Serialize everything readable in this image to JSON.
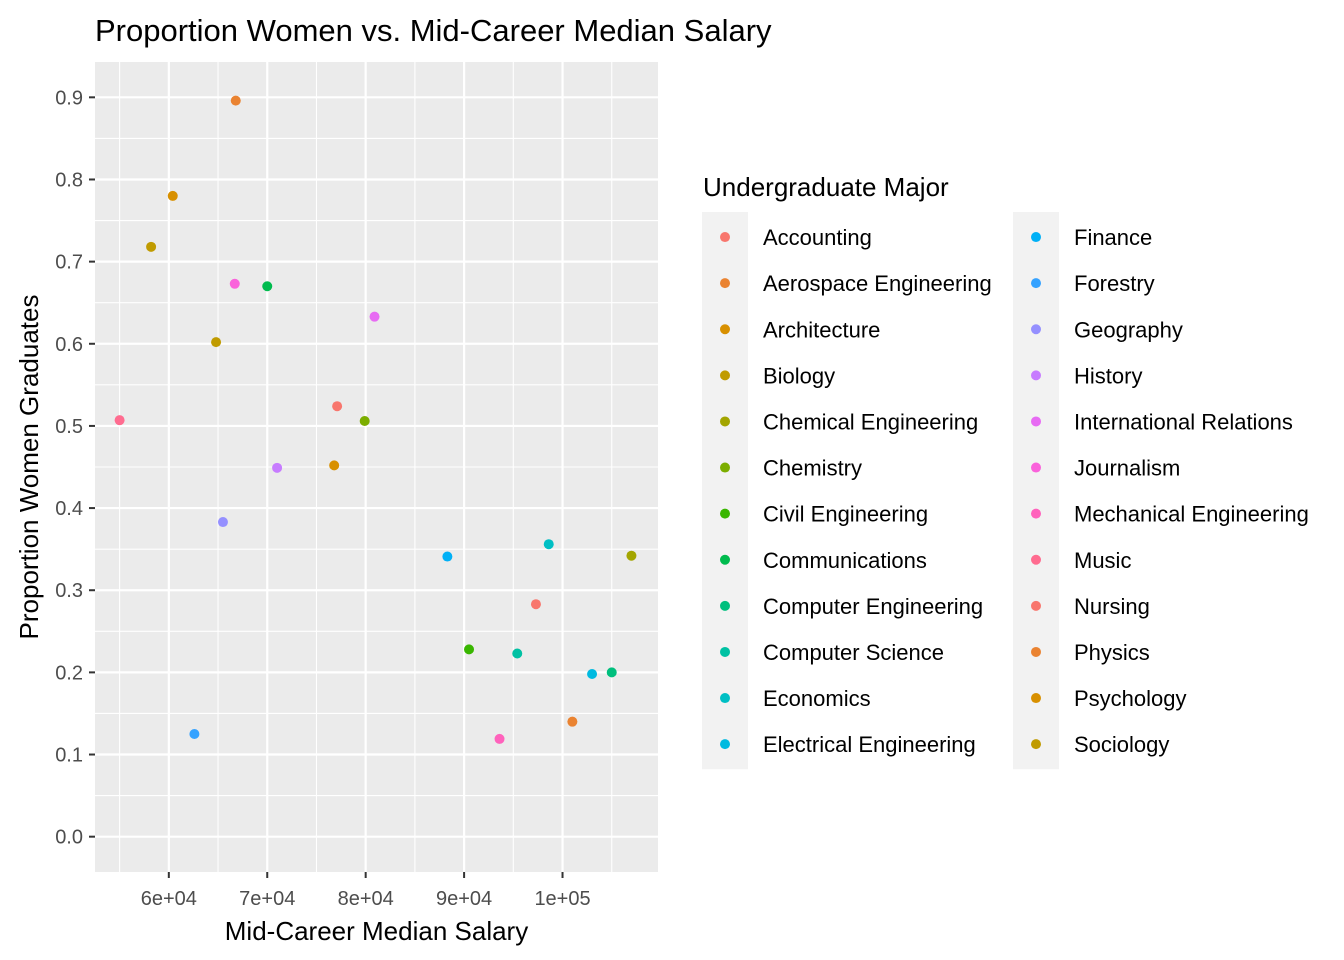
{
  "chart_data": {
    "type": "scatter",
    "title": "Proportion Women vs. Mid-Career Median Salary",
    "xlabel": "Mid-Career Median Salary",
    "ylabel": "Proportion Women Graduates",
    "xlim": [
      52500,
      109700
    ],
    "ylim": [
      -0.043,
      0.943
    ],
    "x_ticks": [
      {
        "value": 60000,
        "label": "6e+04"
      },
      {
        "value": 70000,
        "label": "7e+04"
      },
      {
        "value": 80000,
        "label": "8e+04"
      },
      {
        "value": 90000,
        "label": "9e+04"
      },
      {
        "value": 100000,
        "label": "1e+05"
      }
    ],
    "y_ticks": [
      {
        "value": 0.0,
        "label": "0.0"
      },
      {
        "value": 0.1,
        "label": "0.1"
      },
      {
        "value": 0.2,
        "label": "0.2"
      },
      {
        "value": 0.3,
        "label": "0.3"
      },
      {
        "value": 0.4,
        "label": "0.4"
      },
      {
        "value": 0.5,
        "label": "0.5"
      },
      {
        "value": 0.6,
        "label": "0.6"
      },
      {
        "value": 0.7,
        "label": "0.7"
      },
      {
        "value": 0.8,
        "label": "0.8"
      },
      {
        "value": 0.9,
        "label": "0.9"
      }
    ],
    "grid": true,
    "legend_title": "Undergraduate Major",
    "legend_placement": "right",
    "series": [
      {
        "name": "Accounting",
        "color": "#F8766D",
        "x": 77100,
        "y": 0.524
      },
      {
        "name": "Aerospace Engineering",
        "color": "#EA8331",
        "x": 101000,
        "y": 0.14
      },
      {
        "name": "Architecture",
        "color": "#D89000",
        "x": 76800,
        "y": 0.452
      },
      {
        "name": "Biology",
        "color": "#C09B00",
        "x": 64800,
        "y": 0.602
      },
      {
        "name": "Chemical Engineering",
        "color": "#A3A500",
        "x": 107000,
        "y": 0.342
      },
      {
        "name": "Chemistry",
        "color": "#7CAE00",
        "x": 79900,
        "y": 0.506
      },
      {
        "name": "Civil Engineering",
        "color": "#39B600",
        "x": 90500,
        "y": 0.228
      },
      {
        "name": "Communications",
        "color": "#00BB4E",
        "x": 70000,
        "y": 0.67
      },
      {
        "name": "Computer Engineering",
        "color": "#00BF7D",
        "x": 105000,
        "y": 0.2
      },
      {
        "name": "Computer Science",
        "color": "#00C1A3",
        "x": 95400,
        "y": 0.223
      },
      {
        "name": "Economics",
        "color": "#00BFC4",
        "x": 98600,
        "y": 0.356
      },
      {
        "name": "Electrical Engineering",
        "color": "#00BAE0",
        "x": 103000,
        "y": 0.198
      },
      {
        "name": "Finance",
        "color": "#00B0F6",
        "x": 88300,
        "y": 0.341
      },
      {
        "name": "Forestry",
        "color": "#35A2FF",
        "x": 62600,
        "y": 0.125
      },
      {
        "name": "Geography",
        "color": "#9590FF",
        "x": 65500,
        "y": 0.383
      },
      {
        "name": "History",
        "color": "#C77CFF",
        "x": 71000,
        "y": 0.449
      },
      {
        "name": "International Relations",
        "color": "#E76BF3",
        "x": 80900,
        "y": 0.633
      },
      {
        "name": "Journalism",
        "color": "#FA62DB",
        "x": 66700,
        "y": 0.673
      },
      {
        "name": "Mechanical Engineering",
        "color": "#FF62BC",
        "x": 93600,
        "y": 0.119
      },
      {
        "name": "Music",
        "color": "#FF6C90",
        "x": 55000,
        "y": 0.507
      },
      {
        "name": "Nursing",
        "color": "#F8766D",
        "x": 97300,
        "y": 0.283
      },
      {
        "name": "Physics",
        "color": "#EA8331",
        "x": 66800,
        "y": 0.896
      },
      {
        "name": "Psychology",
        "color": "#D89000",
        "x": 60400,
        "y": 0.78
      },
      {
        "name": "Sociology",
        "color": "#C09B00",
        "x": 58200,
        "y": 0.718
      }
    ]
  }
}
